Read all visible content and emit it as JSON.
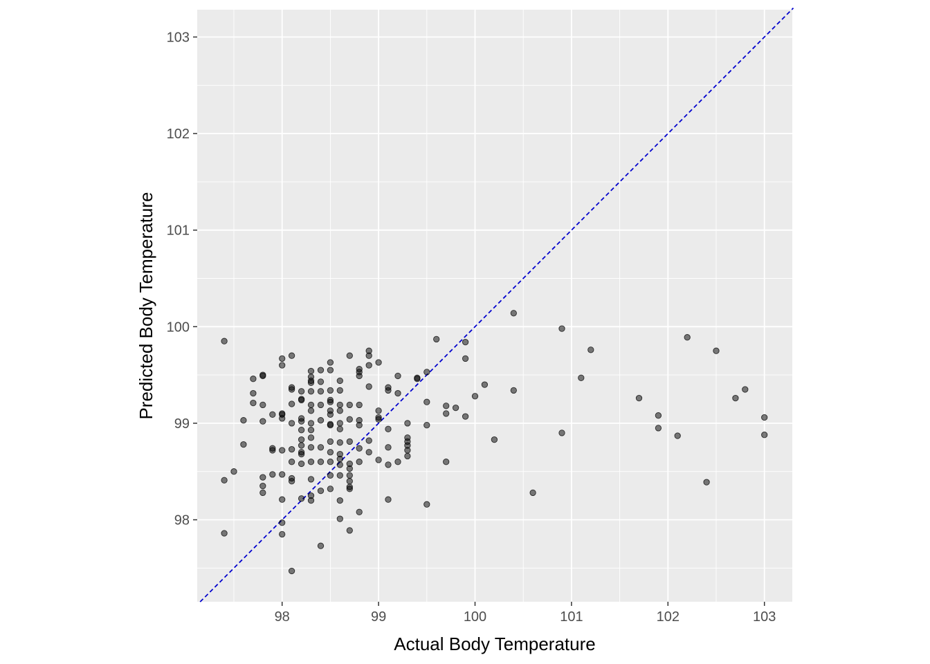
{
  "chart_data": {
    "type": "scatter",
    "title": "",
    "xlabel": "Actual Body Temperature",
    "ylabel": "Predicted Body Temperature",
    "xlim": [
      97.15,
      103.3
    ],
    "ylim": [
      97.15,
      103.3
    ],
    "x_ticks": [
      "98",
      "99",
      "100",
      "101",
      "102",
      "103"
    ],
    "y_ticks": [
      "98",
      "99",
      "100",
      "101",
      "102",
      "103"
    ],
    "grid": true,
    "legend": "none",
    "point_color": "#000000",
    "panel_color": "#ebebeb",
    "reference_line": {
      "type": "identity",
      "slope": 1,
      "intercept": 0,
      "style": "dashed",
      "color": "#0000cd"
    },
    "points": [
      [
        97.4,
        99.85
      ],
      [
        97.4,
        98.41
      ],
      [
        97.4,
        97.86
      ],
      [
        97.5,
        98.5
      ],
      [
        97.6,
        99.03
      ],
      [
        97.6,
        98.78
      ],
      [
        97.7,
        99.46
      ],
      [
        97.7,
        99.31
      ],
      [
        97.7,
        99.21
      ],
      [
        97.8,
        99.5
      ],
      [
        97.8,
        99.49
      ],
      [
        97.8,
        99.19
      ],
      [
        97.8,
        99.02
      ],
      [
        97.8,
        98.44
      ],
      [
        97.8,
        98.35
      ],
      [
        97.8,
        98.28
      ],
      [
        97.9,
        99.09
      ],
      [
        97.9,
        98.74
      ],
      [
        97.9,
        98.72
      ],
      [
        97.9,
        98.47
      ],
      [
        98.0,
        99.67
      ],
      [
        98.0,
        99.6
      ],
      [
        98.0,
        99.1
      ],
      [
        98.0,
        99.09
      ],
      [
        98.0,
        99.05
      ],
      [
        98.0,
        98.72
      ],
      [
        98.0,
        98.47
      ],
      [
        98.0,
        98.21
      ],
      [
        98.0,
        97.97
      ],
      [
        98.0,
        97.85
      ],
      [
        98.1,
        99.7
      ],
      [
        98.1,
        99.37
      ],
      [
        98.1,
        99.35
      ],
      [
        98.1,
        99.2
      ],
      [
        98.1,
        99.0
      ],
      [
        98.1,
        98.73
      ],
      [
        98.1,
        98.6
      ],
      [
        98.1,
        98.43
      ],
      [
        98.1,
        98.4
      ],
      [
        98.1,
        97.47
      ],
      [
        98.2,
        99.33
      ],
      [
        98.2,
        99.25
      ],
      [
        98.2,
        99.24
      ],
      [
        98.2,
        99.05
      ],
      [
        98.2,
        99.02
      ],
      [
        98.2,
        98.93
      ],
      [
        98.2,
        98.83
      ],
      [
        98.2,
        98.77
      ],
      [
        98.2,
        98.7
      ],
      [
        98.2,
        98.68
      ],
      [
        98.2,
        98.58
      ],
      [
        98.2,
        98.22
      ],
      [
        98.3,
        99.54
      ],
      [
        98.3,
        99.48
      ],
      [
        98.3,
        99.44
      ],
      [
        98.3,
        99.42
      ],
      [
        98.3,
        99.33
      ],
      [
        98.3,
        99.19
      ],
      [
        98.3,
        99.13
      ],
      [
        98.3,
        99.0
      ],
      [
        98.3,
        98.93
      ],
      [
        98.3,
        98.85
      ],
      [
        98.3,
        98.75
      ],
      [
        98.3,
        98.6
      ],
      [
        98.3,
        98.42
      ],
      [
        98.3,
        98.25
      ],
      [
        98.3,
        98.2
      ],
      [
        98.4,
        99.55
      ],
      [
        98.4,
        99.43
      ],
      [
        98.4,
        99.33
      ],
      [
        98.4,
        99.19
      ],
      [
        98.4,
        99.03
      ],
      [
        98.4,
        98.75
      ],
      [
        98.4,
        98.6
      ],
      [
        98.4,
        98.3
      ],
      [
        98.4,
        97.73
      ],
      [
        98.5,
        99.63
      ],
      [
        98.5,
        99.55
      ],
      [
        98.5,
        99.34
      ],
      [
        98.5,
        99.24
      ],
      [
        98.5,
        99.22
      ],
      [
        98.5,
        99.13
      ],
      [
        98.5,
        99.09
      ],
      [
        98.5,
        98.99
      ],
      [
        98.5,
        98.98
      ],
      [
        98.5,
        98.81
      ],
      [
        98.5,
        98.7
      ],
      [
        98.5,
        98.6
      ],
      [
        98.5,
        98.46
      ],
      [
        98.5,
        98.32
      ],
      [
        98.6,
        99.44
      ],
      [
        98.6,
        99.34
      ],
      [
        98.6,
        99.19
      ],
      [
        98.6,
        99.13
      ],
      [
        98.6,
        99.0
      ],
      [
        98.6,
        98.94
      ],
      [
        98.6,
        98.8
      ],
      [
        98.6,
        98.68
      ],
      [
        98.6,
        98.63
      ],
      [
        98.6,
        98.57
      ],
      [
        98.6,
        98.46
      ],
      [
        98.6,
        98.2
      ],
      [
        98.6,
        98.01
      ],
      [
        98.7,
        99.7
      ],
      [
        98.7,
        99.19
      ],
      [
        98.7,
        99.04
      ],
      [
        98.7,
        98.81
      ],
      [
        98.7,
        98.58
      ],
      [
        98.7,
        98.53
      ],
      [
        98.7,
        98.46
      ],
      [
        98.7,
        98.4
      ],
      [
        98.7,
        98.34
      ],
      [
        98.7,
        98.32
      ],
      [
        98.7,
        97.89
      ],
      [
        98.8,
        99.56
      ],
      [
        98.8,
        99.53
      ],
      [
        98.8,
        99.49
      ],
      [
        98.8,
        99.19
      ],
      [
        98.8,
        99.03
      ],
      [
        98.8,
        98.98
      ],
      [
        98.8,
        98.74
      ],
      [
        98.8,
        98.6
      ],
      [
        98.8,
        98.08
      ],
      [
        98.9,
        99.75
      ],
      [
        98.9,
        99.7
      ],
      [
        98.9,
        99.6
      ],
      [
        98.9,
        99.38
      ],
      [
        98.9,
        98.82
      ],
      [
        98.9,
        98.7
      ],
      [
        99.0,
        99.63
      ],
      [
        99.0,
        99.13
      ],
      [
        99.0,
        99.06
      ],
      [
        99.0,
        99.04
      ],
      [
        99.0,
        98.62
      ],
      [
        99.1,
        99.37
      ],
      [
        99.1,
        99.34
      ],
      [
        99.1,
        98.94
      ],
      [
        99.1,
        98.75
      ],
      [
        99.1,
        98.57
      ],
      [
        99.1,
        98.21
      ],
      [
        99.2,
        99.49
      ],
      [
        99.2,
        99.31
      ],
      [
        99.2,
        98.6
      ],
      [
        99.3,
        99.0
      ],
      [
        99.3,
        98.85
      ],
      [
        99.3,
        98.81
      ],
      [
        99.3,
        98.77
      ],
      [
        99.3,
        98.72
      ],
      [
        99.3,
        98.66
      ],
      [
        99.4,
        99.47
      ],
      [
        99.4,
        99.46
      ],
      [
        99.5,
        99.53
      ],
      [
        99.5,
        99.22
      ],
      [
        99.5,
        98.98
      ],
      [
        99.5,
        98.16
      ],
      [
        99.6,
        99.87
      ],
      [
        99.7,
        99.18
      ],
      [
        99.7,
        99.1
      ],
      [
        99.7,
        98.6
      ],
      [
        99.8,
        99.16
      ],
      [
        99.9,
        99.84
      ],
      [
        99.9,
        99.67
      ],
      [
        99.9,
        99.07
      ],
      [
        100.0,
        99.28
      ],
      [
        100.1,
        99.4
      ],
      [
        100.2,
        98.83
      ],
      [
        100.4,
        100.14
      ],
      [
        100.4,
        99.34
      ],
      [
        100.6,
        98.28
      ],
      [
        100.9,
        99.98
      ],
      [
        100.9,
        98.9
      ],
      [
        101.1,
        99.47
      ],
      [
        101.2,
        99.76
      ],
      [
        101.7,
        99.26
      ],
      [
        101.9,
        99.08
      ],
      [
        101.9,
        98.95
      ],
      [
        102.1,
        98.87
      ],
      [
        102.2,
        99.89
      ],
      [
        102.4,
        98.39
      ],
      [
        102.5,
        99.75
      ],
      [
        102.7,
        99.26
      ],
      [
        102.8,
        99.35
      ],
      [
        103.0,
        99.06
      ],
      [
        103.0,
        98.88
      ]
    ]
  }
}
